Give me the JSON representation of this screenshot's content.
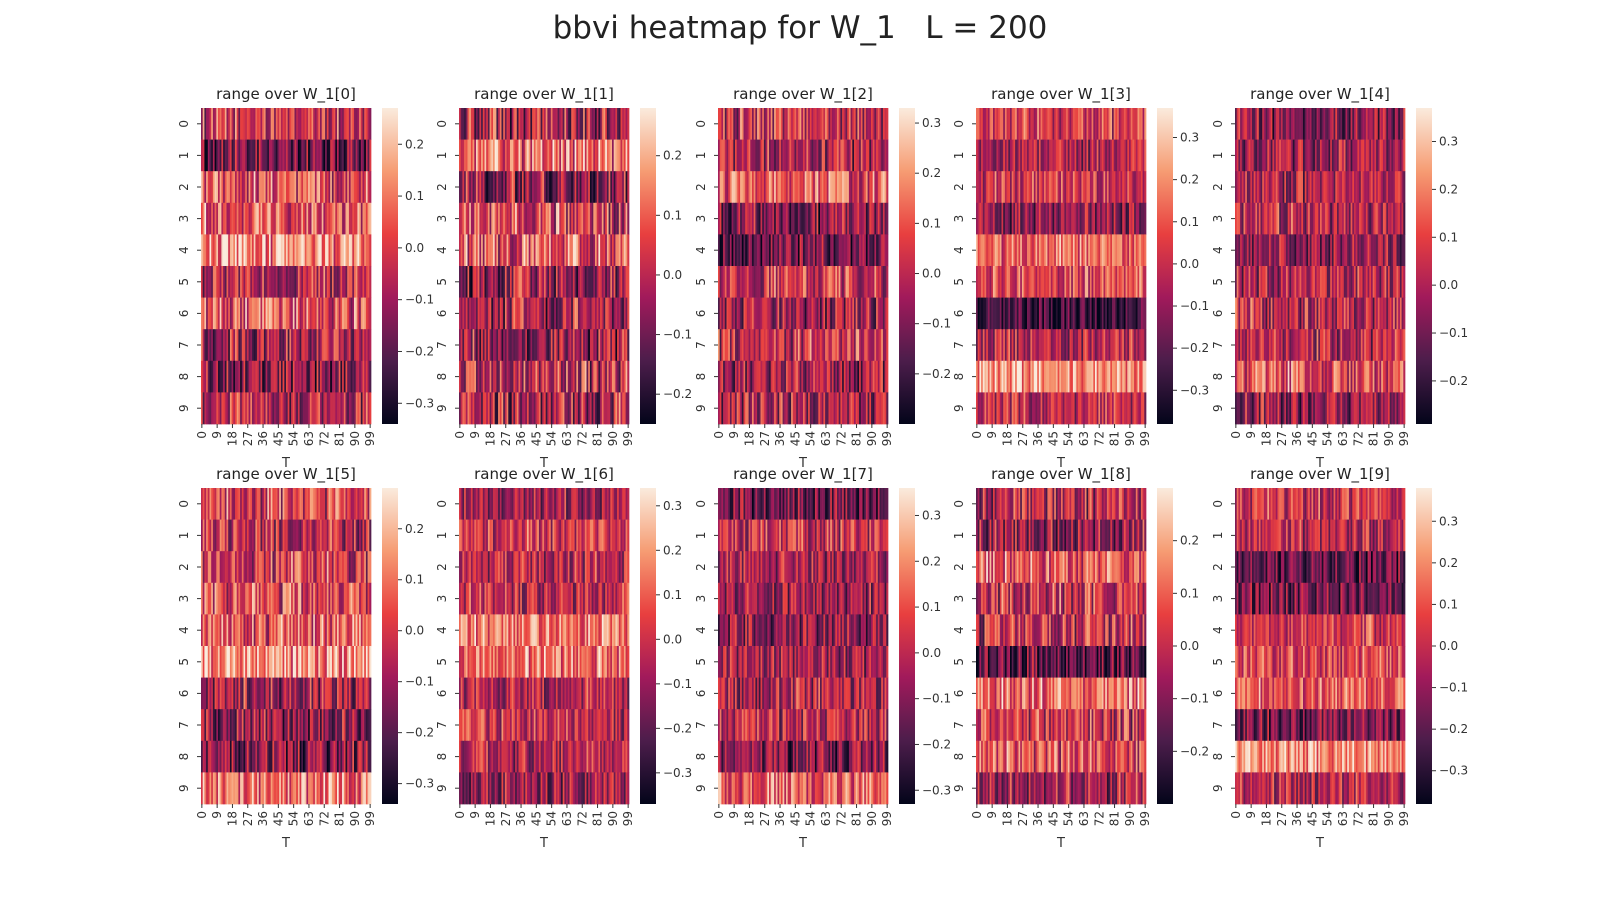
{
  "title": "bbvi heatmap for W_1   L = 200",
  "colormap": [
    "#03051a",
    "#4c1d4b",
    "#a11a5b",
    "#e83f3f",
    "#f69c73",
    "#faebdd"
  ],
  "chart_data": [
    {
      "type": "heatmap",
      "title": "range over W_1[0]",
      "xlabel": "T",
      "ylabel": "",
      "rows": 10,
      "cols": 100,
      "yticks": [
        "0",
        "1",
        "2",
        "3",
        "4",
        "5",
        "6",
        "7",
        "8",
        "9"
      ],
      "xticks": [
        "0",
        "9",
        "18",
        "27",
        "36",
        "45",
        "54",
        "63",
        "72",
        "81",
        "90",
        "99"
      ],
      "vmin": -0.34,
      "vmax": 0.27,
      "cbar_ticks": [
        "0.2",
        "0.1",
        "0.0",
        "−0.1",
        "−0.2",
        "−0.3"
      ],
      "cbar_values": [
        0.2,
        0.1,
        0.0,
        -0.1,
        -0.2,
        -0.3
      ],
      "row_means": [
        -0.02,
        -0.17,
        0.05,
        0.07,
        0.12,
        -0.05,
        0.03,
        -0.08,
        -0.13,
        -0.06
      ]
    },
    {
      "type": "heatmap",
      "title": "range over W_1[1]",
      "xlabel": "T",
      "ylabel": "",
      "rows": 10,
      "cols": 100,
      "yticks": [
        "0",
        "1",
        "2",
        "3",
        "4",
        "5",
        "6",
        "7",
        "8",
        "9"
      ],
      "xticks": [
        "0",
        "9",
        "18",
        "27",
        "36",
        "45",
        "54",
        "63",
        "72",
        "81",
        "90",
        "99"
      ],
      "vmin": -0.25,
      "vmax": 0.28,
      "cbar_ticks": [
        "0.2",
        "0.1",
        "0.0",
        "−0.1",
        "−0.2"
      ],
      "cbar_values": [
        0.2,
        0.1,
        0.0,
        -0.1,
        -0.2
      ],
      "row_means": [
        -0.02,
        0.13,
        -0.06,
        0.05,
        0.08,
        -0.04,
        -0.02,
        -0.05,
        0.02,
        -0.03
      ]
    },
    {
      "type": "heatmap",
      "title": "range over W_1[2]",
      "xlabel": "T",
      "ylabel": "",
      "rows": 10,
      "cols": 100,
      "yticks": [
        "0",
        "1",
        "2",
        "3",
        "4",
        "5",
        "6",
        "7",
        "8",
        "9"
      ],
      "xticks": [
        "0",
        "9",
        "18",
        "27",
        "36",
        "45",
        "54",
        "63",
        "72",
        "81",
        "90",
        "99"
      ],
      "vmin": -0.3,
      "vmax": 0.33,
      "cbar_ticks": [
        "0.3",
        "0.2",
        "0.1",
        "0.0",
        "−0.1",
        "−0.2"
      ],
      "cbar_values": [
        0.3,
        0.2,
        0.1,
        0.0,
        -0.1,
        -0.2
      ],
      "row_means": [
        0.02,
        -0.02,
        0.1,
        -0.09,
        -0.12,
        0.03,
        -0.05,
        0.03,
        -0.06,
        -0.03
      ]
    },
    {
      "type": "heatmap",
      "title": "range over W_1[3]",
      "xlabel": "T",
      "ylabel": "",
      "rows": 10,
      "cols": 100,
      "yticks": [
        "0",
        "1",
        "2",
        "3",
        "4",
        "5",
        "6",
        "7",
        "8",
        "9"
      ],
      "xticks": [
        "0",
        "9",
        "18",
        "27",
        "36",
        "45",
        "54",
        "63",
        "72",
        "81",
        "90",
        "99"
      ],
      "vmin": -0.38,
      "vmax": 0.37,
      "cbar_ticks": [
        "0.3",
        "0.2",
        "0.1",
        "0.0",
        "−0.1",
        "−0.2",
        "−0.3"
      ],
      "cbar_values": [
        0.3,
        0.2,
        0.1,
        0.0,
        -0.1,
        -0.2,
        -0.3
      ],
      "row_means": [
        0.04,
        -0.04,
        0.02,
        -0.12,
        0.12,
        0.08,
        -0.24,
        -0.03,
        0.22,
        -0.02
      ]
    },
    {
      "type": "heatmap",
      "title": "range over W_1[4]",
      "xlabel": "T",
      "ylabel": "",
      "rows": 10,
      "cols": 100,
      "yticks": [
        "0",
        "1",
        "2",
        "3",
        "4",
        "5",
        "6",
        "7",
        "8",
        "9"
      ],
      "xticks": [
        "0",
        "9",
        "18",
        "27",
        "36",
        "45",
        "54",
        "63",
        "72",
        "81",
        "90",
        "99"
      ],
      "vmin": -0.29,
      "vmax": 0.37,
      "cbar_ticks": [
        "0.3",
        "0.2",
        "0.1",
        "0.0",
        "−0.1",
        "−0.2"
      ],
      "cbar_values": [
        0.3,
        0.2,
        0.1,
        0.0,
        -0.1,
        -0.2
      ],
      "row_means": [
        -0.06,
        -0.03,
        0.0,
        0.02,
        -0.04,
        0.0,
        0.03,
        0.01,
        0.12,
        -0.04
      ]
    },
    {
      "type": "heatmap",
      "title": "range over W_1[5]",
      "xlabel": "T",
      "ylabel": "",
      "rows": 10,
      "cols": 100,
      "yticks": [
        "0",
        "1",
        "2",
        "3",
        "4",
        "5",
        "6",
        "7",
        "8",
        "9"
      ],
      "xticks": [
        "0",
        "9",
        "18",
        "27",
        "36",
        "45",
        "54",
        "63",
        "72",
        "81",
        "90",
        "99"
      ],
      "vmin": -0.34,
      "vmax": 0.28,
      "cbar_ticks": [
        "0.2",
        "0.1",
        "0.0",
        "−0.1",
        "−0.2",
        "−0.3"
      ],
      "cbar_values": [
        0.2,
        0.1,
        0.0,
        -0.1,
        -0.2,
        -0.3
      ],
      "row_means": [
        0.02,
        -0.05,
        0.0,
        0.04,
        0.06,
        0.16,
        -0.08,
        -0.12,
        -0.14,
        0.1
      ]
    },
    {
      "type": "heatmap",
      "title": "range over W_1[6]",
      "xlabel": "T",
      "ylabel": "",
      "rows": 10,
      "cols": 100,
      "yticks": [
        "0",
        "1",
        "2",
        "3",
        "4",
        "5",
        "6",
        "7",
        "8",
        "9"
      ],
      "xticks": [
        "0",
        "9",
        "18",
        "27",
        "36",
        "45",
        "54",
        "63",
        "72",
        "81",
        "90",
        "99"
      ],
      "vmin": -0.37,
      "vmax": 0.34,
      "cbar_ticks": [
        "0.3",
        "0.2",
        "0.1",
        "0.0",
        "−0.1",
        "−0.2",
        "−0.3"
      ],
      "cbar_values": [
        0.3,
        0.2,
        0.1,
        0.0,
        -0.1,
        -0.2,
        -0.3
      ],
      "row_means": [
        -0.08,
        0.02,
        -0.03,
        -0.02,
        0.16,
        0.14,
        -0.04,
        -0.03,
        -0.05,
        -0.1
      ]
    },
    {
      "type": "heatmap",
      "title": "range over W_1[7]",
      "xlabel": "T",
      "ylabel": "",
      "rows": 10,
      "cols": 100,
      "yticks": [
        "0",
        "1",
        "2",
        "3",
        "4",
        "5",
        "6",
        "7",
        "8",
        "9"
      ],
      "xticks": [
        "0",
        "9",
        "18",
        "27",
        "36",
        "45",
        "54",
        "63",
        "72",
        "81",
        "90",
        "99"
      ],
      "vmin": -0.33,
      "vmax": 0.36,
      "cbar_ticks": [
        "0.3",
        "0.2",
        "0.1",
        "0.0",
        "−0.1",
        "−0.2",
        "−0.3"
      ],
      "cbar_values": [
        0.3,
        0.2,
        0.1,
        0.0,
        -0.1,
        -0.2,
        -0.3
      ],
      "row_means": [
        -0.14,
        0.02,
        -0.03,
        -0.06,
        -0.07,
        -0.04,
        -0.02,
        0.0,
        -0.12,
        0.14
      ]
    },
    {
      "type": "heatmap",
      "title": "range over W_1[8]",
      "xlabel": "T",
      "ylabel": "",
      "rows": 10,
      "cols": 100,
      "yticks": [
        "0",
        "1",
        "2",
        "3",
        "4",
        "5",
        "6",
        "7",
        "8",
        "9"
      ],
      "xticks": [
        "0",
        "9",
        "18",
        "27",
        "36",
        "45",
        "54",
        "63",
        "72",
        "81",
        "90",
        "99"
      ],
      "vmin": -0.3,
      "vmax": 0.3,
      "cbar_ticks": [
        "0.2",
        "0.1",
        "0.0",
        "−0.1",
        "−0.2"
      ],
      "cbar_values": [
        0.2,
        0.1,
        0.0,
        -0.1,
        -0.2
      ],
      "row_means": [
        -0.02,
        -0.06,
        0.1,
        0.02,
        0.0,
        -0.16,
        0.12,
        0.03,
        0.08,
        -0.04
      ]
    },
    {
      "type": "heatmap",
      "title": "range over W_1[9]",
      "xlabel": "T",
      "ylabel": "",
      "rows": 10,
      "cols": 100,
      "yticks": [
        "0",
        "1",
        "2",
        "3",
        "4",
        "5",
        "6",
        "7",
        "8",
        "9"
      ],
      "xticks": [
        "0",
        "9",
        "18",
        "27",
        "36",
        "45",
        "54",
        "63",
        "72",
        "81",
        "90",
        "99"
      ],
      "vmin": -0.38,
      "vmax": 0.38,
      "cbar_ticks": [
        "0.3",
        "0.2",
        "0.1",
        "0.0",
        "−0.1",
        "−0.2",
        "−0.3"
      ],
      "cbar_values": [
        0.3,
        0.2,
        0.1,
        0.0,
        -0.1,
        -0.2,
        -0.3
      ],
      "row_means": [
        0.03,
        -0.02,
        -0.2,
        -0.15,
        0.04,
        0.07,
        0.11,
        -0.16,
        0.22,
        -0.03
      ]
    }
  ]
}
